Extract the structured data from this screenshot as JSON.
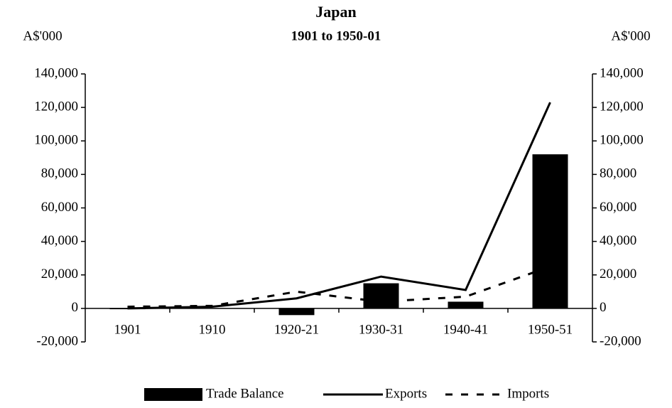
{
  "chart_data": {
    "type": "bar",
    "title": "Japan",
    "subtitle": "1901 to 1950-01",
    "y_label": "A$'000",
    "y2_label": "A$'000",
    "categories": [
      "1901",
      "1910",
      "1920-21",
      "1930-31",
      "1940-41",
      "1950-51"
    ],
    "series": [
      {
        "name": "Trade Balance",
        "type": "bar",
        "color": "#000000",
        "values": [
          -500,
          0,
          -4000,
          15000,
          4000,
          92000
        ]
      },
      {
        "name": "Exports",
        "type": "line",
        "line_style": "solid",
        "color": "#000000",
        "values": [
          0,
          1000,
          6000,
          19000,
          11000,
          123000
        ]
      },
      {
        "name": "Imports",
        "type": "line",
        "line_style": "dashed",
        "color": "#000000",
        "values": [
          1000,
          1500,
          10000,
          4000,
          7000,
          25000
        ]
      }
    ],
    "ylim": [
      -20000,
      140000
    ],
    "yticks": [
      {
        "value": -20000,
        "label": "-20,000"
      },
      0,
      {
        "value": 20000,
        "label": "20,000"
      },
      {
        "value": 40000,
        "label": "40,000"
      },
      {
        "value": 60000,
        "label": "60,000"
      },
      {
        "value": 80000,
        "label": "80,000"
      },
      {
        "value": 100000,
        "label": "100,000"
      },
      {
        "value": 120000,
        "label": "120,000"
      },
      {
        "value": 140000,
        "label": "140,000"
      }
    ],
    "y2lim": [
      -20000,
      140000
    ],
    "y2ticks": [
      {
        "value": -20000,
        "label": "-20,000"
      },
      0,
      {
        "value": 20000,
        "label": "20,000"
      },
      {
        "value": 40000,
        "label": "40,000"
      },
      {
        "value": 60000,
        "label": "60,000"
      },
      {
        "value": 80000,
        "label": "80,000"
      },
      {
        "value": 100000,
        "label": "100,000"
      },
      {
        "value": 120000,
        "label": "120,000"
      },
      {
        "value": 140000,
        "label": "140,000"
      }
    ],
    "grid": false,
    "legend": "bottom"
  }
}
